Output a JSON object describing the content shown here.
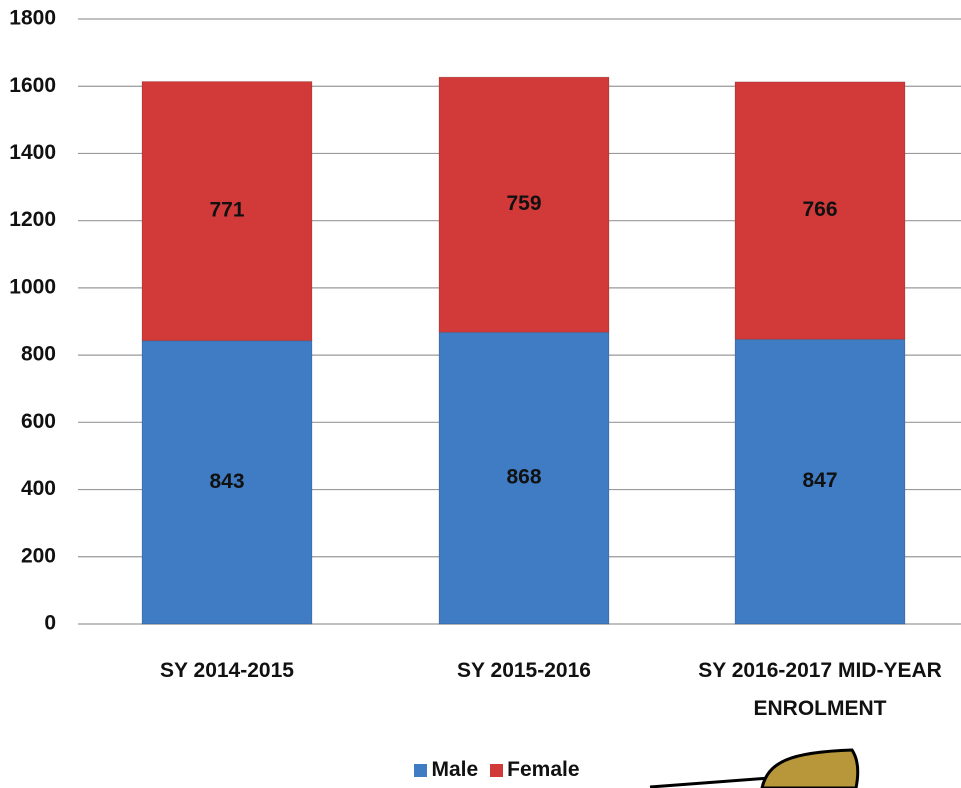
{
  "chart_data": {
    "type": "stacked_bar",
    "categories": [
      "SY 2014-2015",
      "SY 2015-2016",
      "SY 2016-2017 MID-YEAR ENROLMENT"
    ],
    "series": [
      {
        "name": "Male",
        "color": "#3f7cc4",
        "values": [
          843,
          868,
          847
        ]
      },
      {
        "name": "Female",
        "color": "#d23a3a",
        "values": [
          771,
          759,
          766
        ]
      }
    ],
    "ylim": [
      0,
      1800
    ],
    "yticks": [
      0,
      200,
      400,
      600,
      800,
      1000,
      1200,
      1400,
      1600,
      1800
    ],
    "grid": true,
    "legend": "bottom"
  }
}
